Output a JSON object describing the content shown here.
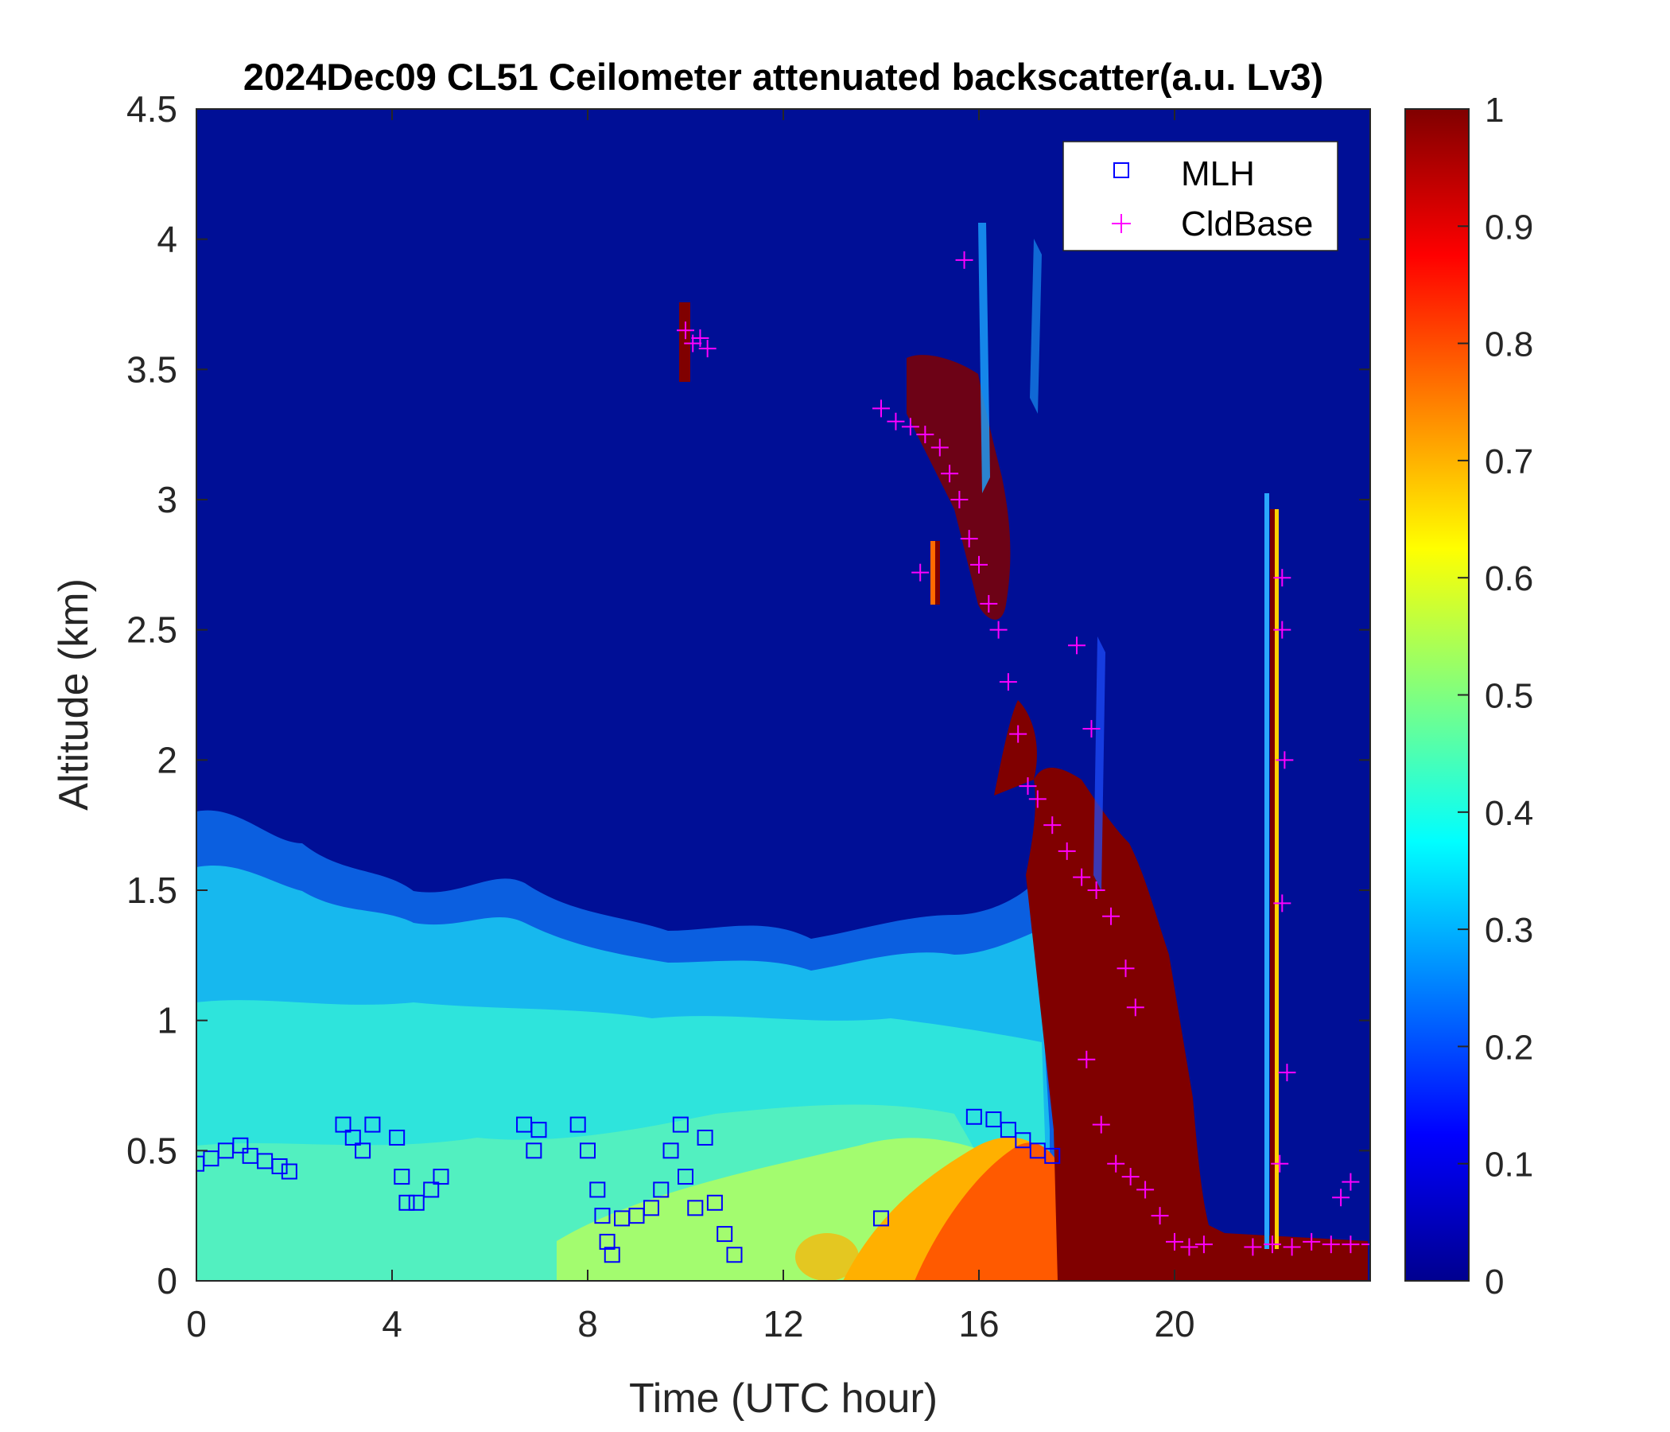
{
  "chart_data": {
    "type": "heatmap",
    "title": "2024Dec09 CL51 Ceilometer attenuated backscatter(a.u. Lv3)",
    "xlabel": "Time (UTC hour)",
    "ylabel": "Altitude (km)",
    "xlim": [
      0,
      24
    ],
    "ylim": [
      0,
      4.5
    ],
    "x_ticks": [
      "0",
      "4",
      "8",
      "12",
      "16",
      "20"
    ],
    "x_tick_values": [
      0,
      4,
      8,
      12,
      16,
      20
    ],
    "y_ticks": [
      "0",
      "0.5",
      "1",
      "1.5",
      "2",
      "2.5",
      "3",
      "3.5",
      "4",
      "4.5"
    ],
    "y_tick_values": [
      0,
      0.5,
      1,
      1.5,
      2,
      2.5,
      3,
      3.5,
      4,
      4.5
    ],
    "colorbar": {
      "colormap": "jet",
      "range": [
        0,
        1
      ],
      "ticks": [
        "0",
        "0.1",
        "0.2",
        "0.3",
        "0.4",
        "0.5",
        "0.6",
        "0.7",
        "0.8",
        "0.9",
        "1"
      ],
      "tick_values": [
        0,
        0.1,
        0.2,
        0.3,
        0.4,
        0.5,
        0.6,
        0.7,
        0.8,
        0.9,
        1
      ]
    },
    "legend": {
      "position": "top-right",
      "entries": [
        {
          "label": "MLH",
          "marker": "square",
          "color": "#0000ff"
        },
        {
          "label": "CldBase",
          "marker": "plus",
          "color": "#ff00ff"
        }
      ]
    },
    "series": [
      {
        "name": "MLH",
        "points": [
          [
            0.0,
            0.45
          ],
          [
            0.3,
            0.47
          ],
          [
            0.6,
            0.5
          ],
          [
            0.9,
            0.52
          ],
          [
            1.1,
            0.48
          ],
          [
            1.4,
            0.46
          ],
          [
            1.7,
            0.44
          ],
          [
            1.9,
            0.42
          ],
          [
            3.0,
            0.6
          ],
          [
            3.2,
            0.55
          ],
          [
            3.4,
            0.5
          ],
          [
            3.6,
            0.6
          ],
          [
            4.1,
            0.55
          ],
          [
            4.2,
            0.4
          ],
          [
            4.3,
            0.3
          ],
          [
            4.5,
            0.3
          ],
          [
            4.8,
            0.35
          ],
          [
            5.0,
            0.4
          ],
          [
            6.7,
            0.6
          ],
          [
            6.9,
            0.5
          ],
          [
            7.0,
            0.58
          ],
          [
            7.8,
            0.6
          ],
          [
            8.0,
            0.5
          ],
          [
            8.2,
            0.35
          ],
          [
            8.3,
            0.25
          ],
          [
            8.4,
            0.15
          ],
          [
            8.5,
            0.1
          ],
          [
            8.7,
            0.24
          ],
          [
            9.0,
            0.25
          ],
          [
            9.3,
            0.28
          ],
          [
            9.5,
            0.35
          ],
          [
            9.7,
            0.5
          ],
          [
            9.9,
            0.6
          ],
          [
            10.0,
            0.4
          ],
          [
            10.2,
            0.28
          ],
          [
            10.4,
            0.55
          ],
          [
            10.6,
            0.3
          ],
          [
            10.8,
            0.18
          ],
          [
            11.0,
            0.1
          ],
          [
            14.0,
            0.24
          ],
          [
            15.9,
            0.63
          ],
          [
            16.3,
            0.62
          ],
          [
            16.6,
            0.58
          ],
          [
            16.9,
            0.54
          ],
          [
            17.2,
            0.5
          ],
          [
            17.5,
            0.48
          ]
        ]
      },
      {
        "name": "CldBase",
        "points": [
          [
            10.0,
            3.65
          ],
          [
            10.15,
            3.6
          ],
          [
            10.3,
            3.62
          ],
          [
            10.45,
            3.58
          ],
          [
            14.0,
            3.35
          ],
          [
            14.3,
            3.3
          ],
          [
            14.6,
            3.28
          ],
          [
            14.9,
            3.25
          ],
          [
            15.2,
            3.2
          ],
          [
            15.4,
            3.1
          ],
          [
            15.6,
            3.0
          ],
          [
            15.8,
            2.85
          ],
          [
            16.0,
            2.75
          ],
          [
            16.2,
            2.6
          ],
          [
            16.4,
            2.5
          ],
          [
            16.6,
            2.3
          ],
          [
            16.8,
            2.1
          ],
          [
            17.0,
            1.9
          ],
          [
            17.2,
            1.85
          ],
          [
            17.5,
            1.75
          ],
          [
            17.8,
            1.65
          ],
          [
            18.1,
            1.55
          ],
          [
            18.4,
            1.5
          ],
          [
            18.7,
            1.4
          ],
          [
            19.0,
            1.2
          ],
          [
            19.2,
            1.05
          ],
          [
            15.7,
            3.92
          ],
          [
            14.8,
            2.72
          ],
          [
            18.0,
            2.44
          ],
          [
            18.3,
            2.12
          ],
          [
            18.2,
            0.85
          ],
          [
            18.5,
            0.6
          ],
          [
            18.8,
            0.45
          ],
          [
            19.1,
            0.4
          ],
          [
            19.4,
            0.35
          ],
          [
            19.7,
            0.25
          ],
          [
            20.0,
            0.15
          ],
          [
            20.3,
            0.13
          ],
          [
            20.6,
            0.14
          ],
          [
            21.6,
            0.13
          ],
          [
            22.0,
            0.14
          ],
          [
            22.4,
            0.13
          ],
          [
            22.8,
            0.15
          ],
          [
            23.2,
            0.14
          ],
          [
            23.6,
            0.14
          ],
          [
            24.0,
            0.14
          ],
          [
            22.2,
            2.7
          ],
          [
            22.2,
            2.5
          ],
          [
            22.25,
            2.0
          ],
          [
            22.2,
            1.45
          ],
          [
            22.3,
            0.8
          ],
          [
            22.15,
            0.45
          ],
          [
            23.4,
            0.32
          ],
          [
            23.6,
            0.38
          ]
        ]
      }
    ]
  }
}
